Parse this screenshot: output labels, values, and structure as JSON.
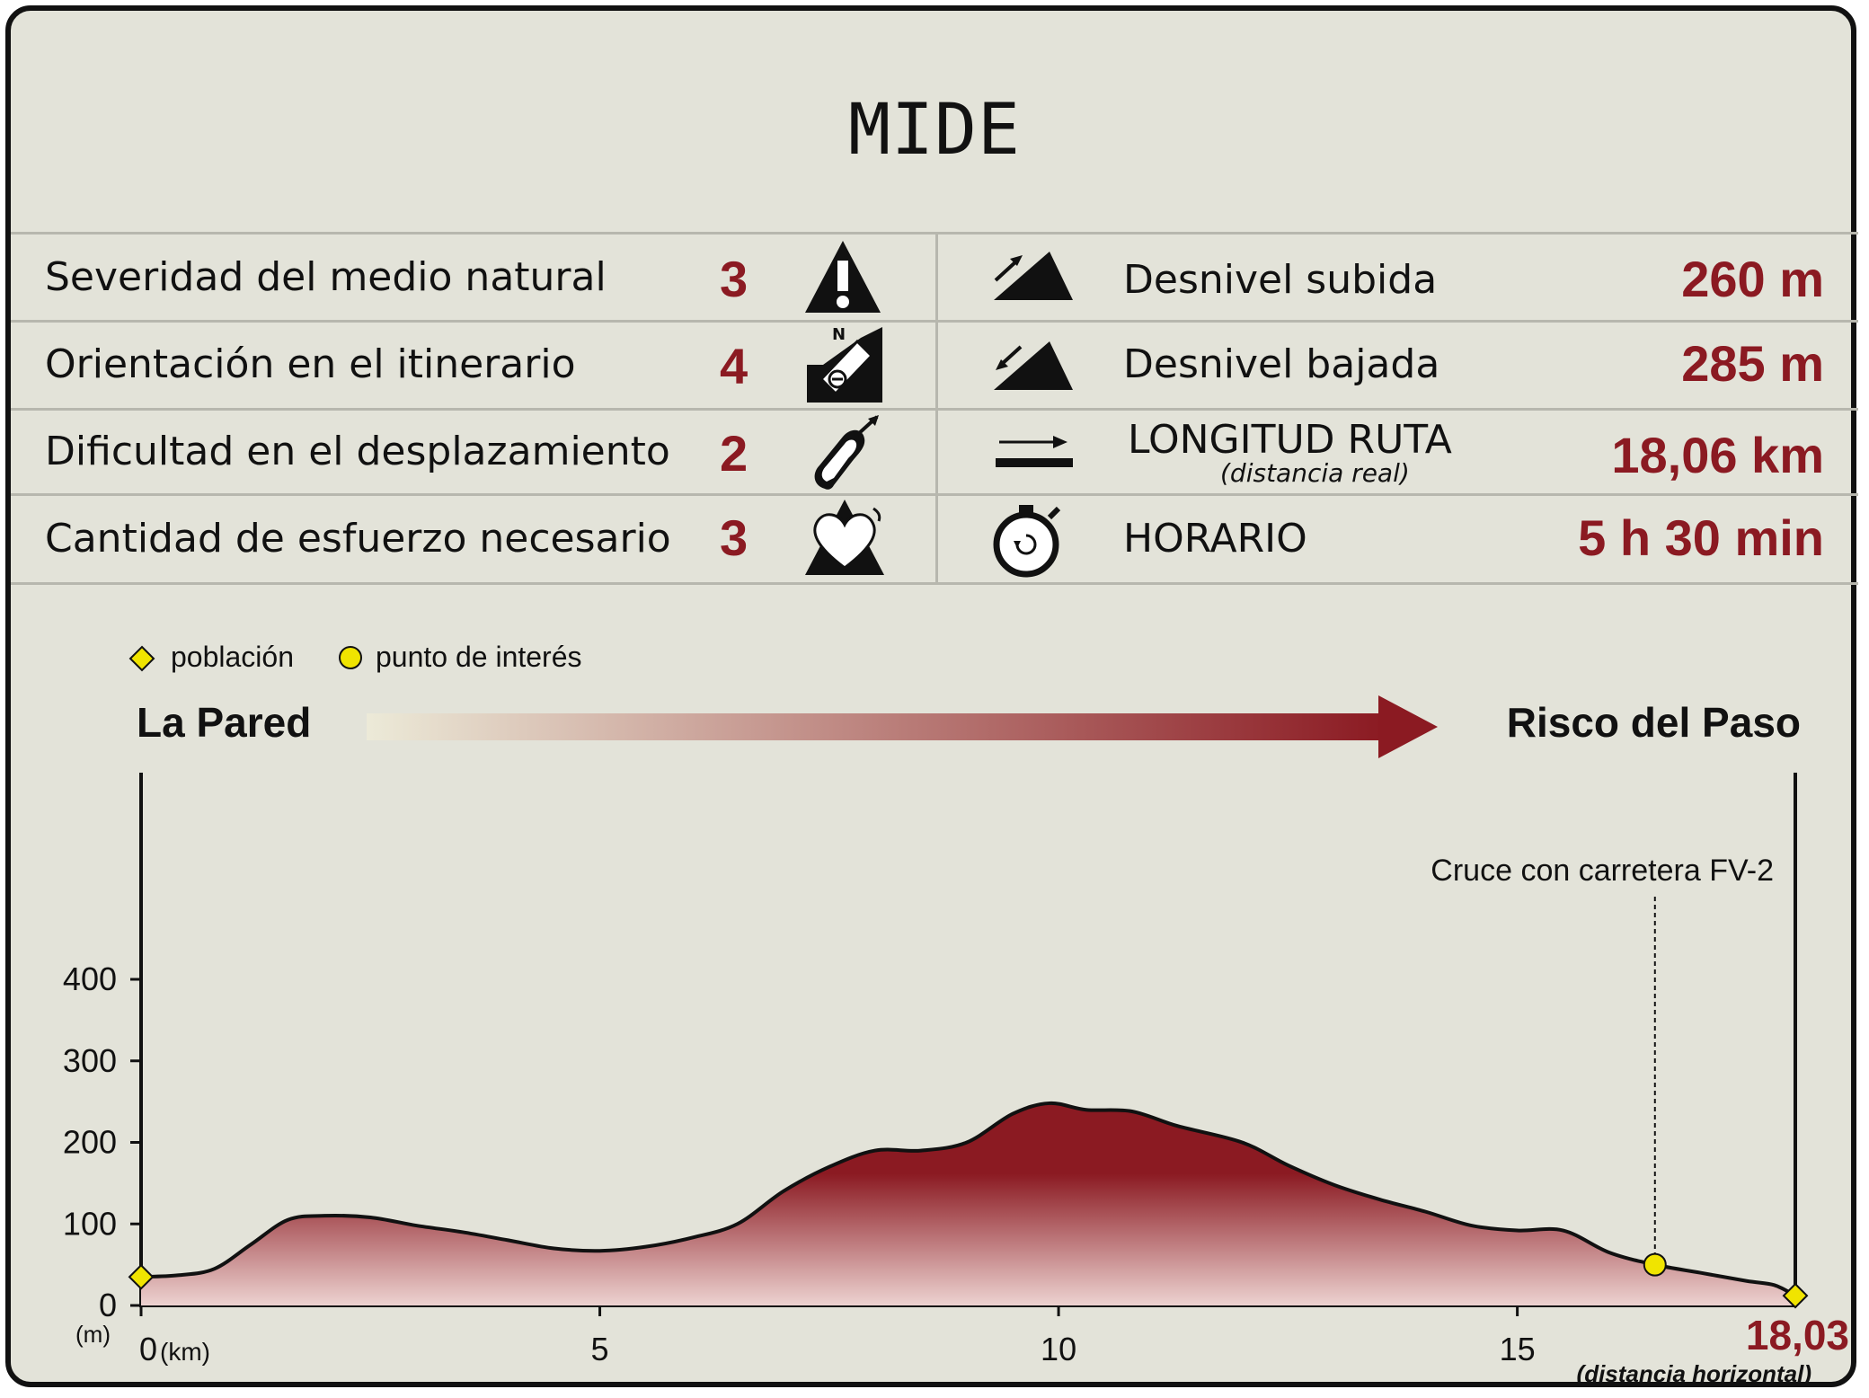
{
  "title": "MIDE",
  "mide_left": [
    {
      "label": "Severidad del medio natural",
      "value": "3",
      "icon": "warning-mountain-icon"
    },
    {
      "label": "Orientación en el itinerario",
      "value": "4",
      "icon": "compass-icon"
    },
    {
      "label": "Dificultad en el desplazamiento",
      "value": "2",
      "icon": "footprint-icon"
    },
    {
      "label": "Cantidad de esfuerzo necesario",
      "value": "3",
      "icon": "heart-mountain-icon"
    }
  ],
  "mide_right": [
    {
      "label": "Desnivel subida",
      "value": "260 m",
      "icon": "slope-up-icon"
    },
    {
      "label": "Desnivel bajada",
      "value": "285 m",
      "icon": "slope-down-icon"
    },
    {
      "label": "LONGITUD RUTA",
      "sublabel": "(distancia real)",
      "value": "18,06 km",
      "icon": "distance-arrow-icon"
    },
    {
      "label": "HORARIO",
      "value": "5 h 30 min",
      "icon": "stopwatch-icon"
    }
  ],
  "legend": {
    "poblacion": "población",
    "punto_interes": "punto de interés"
  },
  "route": {
    "start": "La Pared",
    "end": "Risco del Paso"
  },
  "colors": {
    "accent": "#8b1a22",
    "background": "#e3e3d9",
    "marker": "#f0e400"
  },
  "chart_data": {
    "type": "area",
    "x_unit": "(km)",
    "y_unit": "(m)",
    "xlim": [
      0,
      18.03
    ],
    "ylim": [
      0,
      400
    ],
    "x_ticks": [
      "0",
      "5",
      "10",
      "15"
    ],
    "y_ticks": [
      "0",
      "100",
      "200",
      "300",
      "400"
    ],
    "x_end_label": "18,03",
    "x_end_note": "(distancia horizontal)",
    "series": [
      {
        "x": [
          0,
          0.4,
          0.8,
          1.2,
          1.6,
          2.0,
          2.5,
          3.0,
          3.5,
          4.0,
          4.5,
          5.0,
          5.5,
          6.0,
          6.5,
          7.0,
          7.5,
          8.0,
          8.5,
          9.0,
          9.5,
          9.9,
          10.3,
          10.8,
          11.3,
          12.0,
          12.5,
          13.0,
          13.5,
          14.0,
          14.5,
          15.0,
          15.5,
          16.0,
          16.5,
          17.0,
          17.5,
          17.8,
          18.03
        ],
        "y": [
          35,
          37,
          45,
          75,
          105,
          110,
          108,
          98,
          90,
          80,
          70,
          67,
          72,
          83,
          100,
          140,
          170,
          190,
          190,
          200,
          235,
          248,
          240,
          238,
          220,
          200,
          172,
          148,
          130,
          115,
          98,
          92,
          92,
          65,
          50,
          40,
          30,
          25,
          12
        ]
      }
    ],
    "points": [
      {
        "x": 0,
        "y": 35,
        "kind": "población"
      },
      {
        "x": 16.5,
        "y": 50,
        "kind": "punto de interés",
        "label": "Cruce con carretera FV-2"
      },
      {
        "x": 18.03,
        "y": 12,
        "kind": "población"
      }
    ]
  }
}
